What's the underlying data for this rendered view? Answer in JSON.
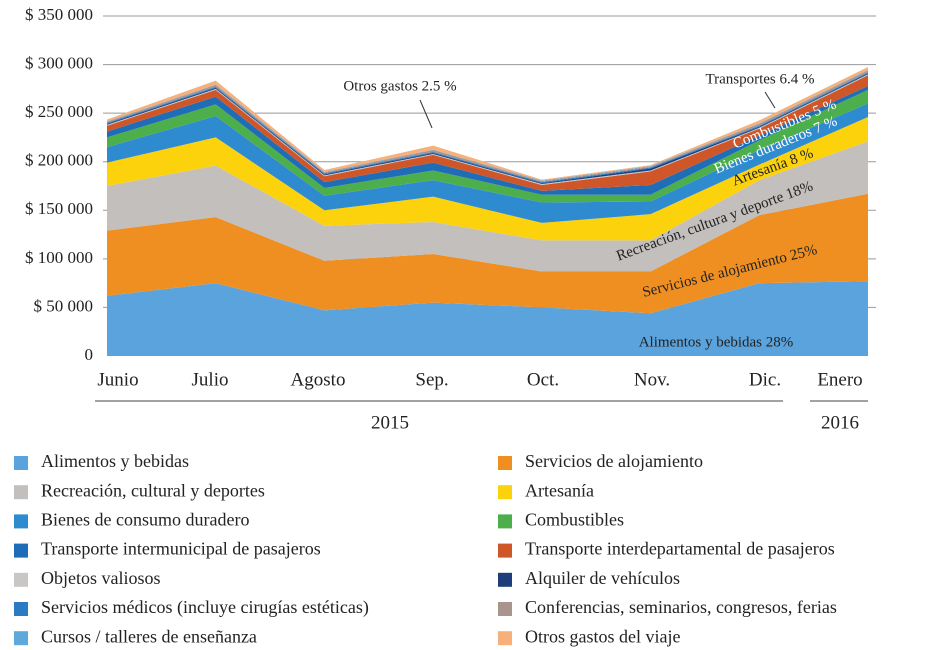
{
  "chart_data": {
    "type": "stacked_area",
    "categories": [
      "Junio",
      "Julio",
      "Agosto",
      "Sep.",
      "Oct.",
      "Nov.",
      "Dic.",
      "Enero"
    ],
    "x_groups": [
      "2015",
      "2016"
    ],
    "ylim": [
      0,
      350000
    ],
    "yticks": [
      0,
      {
        "value": 50000,
        "label": "$  50 000"
      },
      {
        "value": 100000,
        "label": "$ 100 000"
      },
      {
        "value": 150000,
        "label": "$ 150 000"
      },
      {
        "value": 200000,
        "label": "$ 200 000"
      },
      {
        "value": 250000,
        "label": "$ 250 000"
      },
      {
        "value": 300000,
        "label": "$ 300 000"
      },
      {
        "value": 350000,
        "label": "$ 350 000"
      }
    ],
    "grid": true,
    "series": [
      {
        "name": "Alimentos y bebidas",
        "color": "#5ba3dc",
        "values": [
          62000,
          75000,
          47000,
          55000,
          50000,
          44000,
          75000,
          77000
        ]
      },
      {
        "name": "Servicios de alojamiento",
        "color": "#ef8f22",
        "values": [
          67000,
          68000,
          51000,
          50000,
          37000,
          43000,
          70000,
          90000
        ]
      },
      {
        "name": "Recreación, cultural y deportes",
        "color": "#c2bfbd",
        "values": [
          46000,
          53000,
          36000,
          33000,
          32000,
          32000,
          36000,
          54000
        ]
      },
      {
        "name": "Artesanía",
        "color": "#fcd20c",
        "values": [
          24000,
          29000,
          16000,
          26000,
          18000,
          27000,
          16000,
          25000
        ]
      },
      {
        "name": "Bienes de consumo duradero",
        "color": "#2e8bd0",
        "values": [
          16000,
          22000,
          15000,
          17000,
          21000,
          13000,
          15000,
          14000
        ]
      },
      {
        "name": "Combustibles",
        "color": "#4caf4b",
        "values": [
          10000,
          12000,
          8000,
          10000,
          8000,
          7000,
          10000,
          14000
        ]
      },
      {
        "name": "Transporte intermunicipal de pasajeros",
        "color": "#1f6db6",
        "values": [
          6000,
          8000,
          6000,
          8000,
          4000,
          10000,
          5000,
          4000
        ]
      },
      {
        "name": "Transporte interdepartamental de pasajeros",
        "color": "#cf5628",
        "values": [
          6000,
          7000,
          6000,
          8000,
          6000,
          14000,
          7000,
          11000
        ]
      },
      {
        "name": "Objetos valiosos",
        "color": "#c9c7c5",
        "values": [
          1000,
          1000,
          1000,
          1000,
          1000,
          1000,
          1000,
          1000
        ]
      },
      {
        "name": "Alquiler de vehículos",
        "color": "#1f3d7a",
        "values": [
          1000,
          1000,
          1000,
          1000,
          1000,
          2000,
          1000,
          1000
        ]
      },
      {
        "name": "Servicios médicos (incluye cirugías estéticas)",
        "color": "#2a7bc4",
        "values": [
          1000,
          1000,
          1000,
          1000,
          1000,
          1000,
          1000,
          1000
        ]
      },
      {
        "name": "Conferencias, seminarios, congresos, ferias",
        "color": "#a8968e",
        "values": [
          1000,
          2000,
          1000,
          2000,
          1000,
          1000,
          2000,
          2000
        ]
      },
      {
        "name": "Cursos / talleres de enseñanza",
        "color": "#5fa8dc",
        "values": [
          500,
          500,
          500,
          500,
          500,
          500,
          500,
          500
        ]
      },
      {
        "name": "Otros gastos del viaje",
        "color": "#f8b07a",
        "values": [
          2000,
          4000,
          2000,
          4000,
          1000,
          1000,
          3000,
          3000
        ]
      }
    ],
    "annotations": [
      "Otros gastos 2.5 %",
      "Transportes 6.4 %",
      "Combustibles 5 %",
      "Bienes duraderos 7 %",
      "Artesanía 8 %",
      "Recreación, cultura y deporte 18%",
      "Servicios de alojamiento 25%",
      "Alimentos y bebidas 28%"
    ]
  }
}
